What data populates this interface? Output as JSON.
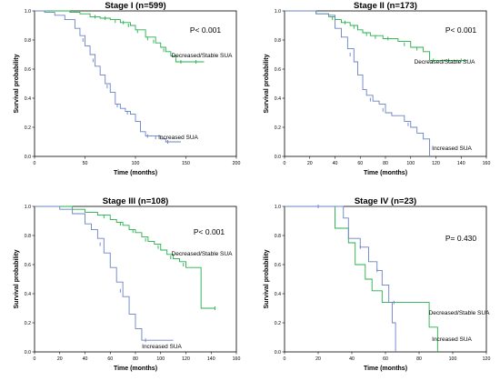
{
  "chart_data": [
    {
      "type": "line",
      "title": "Stage I (n=599)",
      "xlabel": "Time (months)",
      "ylabel": "Survival probability",
      "xlim": [
        0,
        200
      ],
      "ylim": [
        0,
        1.0
      ],
      "xticks": [
        0,
        50,
        100,
        150,
        200
      ],
      "yticks": [
        0.0,
        0.2,
        0.4,
        0.6,
        0.8,
        1.0
      ],
      "pvalue": "P< 0.001",
      "grid": false,
      "series": [
        {
          "name": "Decreased/Stable SUA",
          "color": "#22b04a",
          "points": [
            [
              0,
              1.0
            ],
            [
              20,
              1.0
            ],
            [
              35,
              0.99
            ],
            [
              45,
              0.98
            ],
            [
              55,
              0.96
            ],
            [
              65,
              0.95
            ],
            [
              75,
              0.94
            ],
            [
              85,
              0.92
            ],
            [
              95,
              0.9
            ],
            [
              100,
              0.87
            ],
            [
              110,
              0.82
            ],
            [
              120,
              0.78
            ],
            [
              125,
              0.75
            ],
            [
              130,
              0.72
            ],
            [
              135,
              0.69
            ],
            [
              140,
              0.65
            ],
            [
              155,
              0.65
            ],
            [
              168,
              0.65
            ]
          ],
          "censor": [
            [
              60,
              0.96
            ],
            [
              70,
              0.95
            ],
            [
              80,
              0.93
            ],
            [
              88,
              0.92
            ],
            [
              93,
              0.9
            ],
            [
              102,
              0.86
            ],
            [
              112,
              0.81
            ],
            [
              118,
              0.79
            ],
            [
              128,
              0.73
            ],
            [
              145,
              0.65
            ],
            [
              160,
              0.65
            ]
          ]
        },
        {
          "name": "Increased SUA",
          "color": "#6a80c8",
          "points": [
            [
              0,
              1.0
            ],
            [
              10,
              0.99
            ],
            [
              20,
              0.97
            ],
            [
              30,
              0.94
            ],
            [
              40,
              0.88
            ],
            [
              45,
              0.83
            ],
            [
              50,
              0.76
            ],
            [
              55,
              0.7
            ],
            [
              60,
              0.62
            ],
            [
              65,
              0.56
            ],
            [
              70,
              0.5
            ],
            [
              75,
              0.44
            ],
            [
              80,
              0.36
            ],
            [
              85,
              0.33
            ],
            [
              90,
              0.31
            ],
            [
              95,
              0.29
            ],
            [
              100,
              0.24
            ],
            [
              105,
              0.17
            ],
            [
              110,
              0.14
            ],
            [
              115,
              0.14
            ],
            [
              125,
              0.12
            ],
            [
              130,
              0.1
            ],
            [
              145,
              0.1
            ]
          ],
          "censor": [
            [
              48,
              0.8
            ],
            [
              58,
              0.66
            ],
            [
              72,
              0.48
            ],
            [
              82,
              0.35
            ],
            [
              92,
              0.3
            ],
            [
              112,
              0.14
            ],
            [
              120,
              0.13
            ],
            [
              132,
              0.1
            ]
          ]
        }
      ],
      "series_labels": [
        "Decreased/Stable SUA",
        "Increased SUA"
      ]
    },
    {
      "type": "line",
      "title": "Stage II (n=173)",
      "xlabel": "Time (months)",
      "ylabel": "Survival probability",
      "xlim": [
        0,
        160
      ],
      "ylim": [
        0,
        1.0
      ],
      "xticks": [
        0,
        20,
        40,
        60,
        80,
        100,
        120,
        140,
        160
      ],
      "yticks": [
        0.0,
        0.2,
        0.4,
        0.6,
        0.8,
        1.0
      ],
      "pvalue": "P< 0.001",
      "grid": false,
      "series": [
        {
          "name": "Decreased/Stable SUA",
          "color": "#22b04a",
          "points": [
            [
              0,
              1.0
            ],
            [
              20,
              1.0
            ],
            [
              25,
              0.98
            ],
            [
              35,
              0.96
            ],
            [
              40,
              0.94
            ],
            [
              45,
              0.92
            ],
            [
              52,
              0.9
            ],
            [
              58,
              0.87
            ],
            [
              62,
              0.85
            ],
            [
              68,
              0.83
            ],
            [
              78,
              0.81
            ],
            [
              90,
              0.79
            ],
            [
              100,
              0.75
            ],
            [
              110,
              0.72
            ],
            [
              115,
              0.66
            ],
            [
              125,
              0.66
            ],
            [
              145,
              0.66
            ]
          ],
          "censor": [
            [
              38,
              0.95
            ],
            [
              48,
              0.92
            ],
            [
              55,
              0.89
            ],
            [
              65,
              0.84
            ],
            [
              72,
              0.82
            ],
            [
              82,
              0.81
            ],
            [
              95,
              0.77
            ],
            [
              105,
              0.74
            ],
            [
              118,
              0.66
            ],
            [
              130,
              0.66
            ],
            [
              140,
              0.66
            ]
          ]
        },
        {
          "name": "Increased SUA",
          "color": "#6a80c8",
          "points": [
            [
              0,
              1.0
            ],
            [
              25,
              0.98
            ],
            [
              35,
              0.97
            ],
            [
              40,
              0.88
            ],
            [
              45,
              0.82
            ],
            [
              50,
              0.74
            ],
            [
              55,
              0.65
            ],
            [
              58,
              0.56
            ],
            [
              62,
              0.46
            ],
            [
              65,
              0.42
            ],
            [
              70,
              0.38
            ],
            [
              75,
              0.36
            ],
            [
              80,
              0.3
            ],
            [
              85,
              0.28
            ],
            [
              90,
              0.28
            ],
            [
              95,
              0.24
            ],
            [
              100,
              0.2
            ],
            [
              105,
              0.16
            ],
            [
              110,
              0.12
            ],
            [
              115,
              0.0
            ]
          ],
          "censor": [
            [
              52,
              0.7
            ],
            [
              68,
              0.39
            ],
            [
              78,
              0.32
            ],
            [
              98,
              0.22
            ]
          ]
        }
      ],
      "series_labels": [
        "Decreased/Stable SUA",
        "Increased SUA"
      ]
    },
    {
      "type": "line",
      "title": "Stage III (n=108)",
      "xlabel": "Time (months)",
      "ylabel": "Survival probability",
      "xlim": [
        0,
        160
      ],
      "ylim": [
        0,
        1.0
      ],
      "xticks": [
        0,
        20,
        40,
        60,
        80,
        100,
        120,
        140,
        160
      ],
      "yticks": [
        0.0,
        0.2,
        0.4,
        0.6,
        0.8,
        1.0
      ],
      "pvalue": "P< 0.001",
      "grid": false,
      "series": [
        {
          "name": "Decreased/Stable SUA",
          "color": "#22b04a",
          "points": [
            [
              0,
              1.0
            ],
            [
              20,
              1.0
            ],
            [
              30,
              0.98
            ],
            [
              40,
              0.96
            ],
            [
              50,
              0.94
            ],
            [
              60,
              0.91
            ],
            [
              65,
              0.89
            ],
            [
              70,
              0.87
            ],
            [
              75,
              0.84
            ],
            [
              80,
              0.82
            ],
            [
              85,
              0.79
            ],
            [
              90,
              0.76
            ],
            [
              95,
              0.74
            ],
            [
              100,
              0.7
            ],
            [
              105,
              0.67
            ],
            [
              110,
              0.64
            ],
            [
              115,
              0.62
            ],
            [
              120,
              0.58
            ],
            [
              130,
              0.58
            ],
            [
              132,
              0.3
            ],
            [
              143,
              0.3
            ]
          ],
          "censor": [
            [
              55,
              0.93
            ],
            [
              68,
              0.88
            ],
            [
              78,
              0.83
            ],
            [
              88,
              0.77
            ],
            [
              98,
              0.72
            ],
            [
              108,
              0.65
            ],
            [
              118,
              0.6
            ],
            [
              143,
              0.3
            ]
          ]
        },
        {
          "name": "Increased SUA",
          "color": "#6a80c8",
          "points": [
            [
              0,
              1.0
            ],
            [
              20,
              0.98
            ],
            [
              30,
              0.95
            ],
            [
              40,
              0.88
            ],
            [
              45,
              0.84
            ],
            [
              50,
              0.78
            ],
            [
              55,
              0.68
            ],
            [
              60,
              0.58
            ],
            [
              65,
              0.48
            ],
            [
              70,
              0.38
            ],
            [
              75,
              0.26
            ],
            [
              80,
              0.16
            ],
            [
              85,
              0.08
            ],
            [
              95,
              0.08
            ],
            [
              110,
              0.08
            ]
          ],
          "censor": [
            [
              52,
              0.74
            ],
            [
              68,
              0.42
            ],
            [
              88,
              0.08
            ]
          ]
        }
      ],
      "series_labels": [
        "Decreased/Stable SUA",
        "Increased SUA"
      ]
    },
    {
      "type": "line",
      "title": "Stage IV (n=23)",
      "xlabel": "Time (months)",
      "ylabel": "Survival probability",
      "xlim": [
        0,
        120
      ],
      "ylim": [
        0,
        1.0
      ],
      "xticks": [
        0,
        20,
        40,
        60,
        80,
        100,
        120
      ],
      "yticks": [
        0.0,
        0.2,
        0.4,
        0.6,
        0.8,
        1.0
      ],
      "pvalue": "P= 0.430",
      "grid": false,
      "series": [
        {
          "name": "Decreased/Stable SUA",
          "color": "#22b04a",
          "points": [
            [
              0,
              1.0
            ],
            [
              28,
              1.0
            ],
            [
              30,
              0.85
            ],
            [
              38,
              0.75
            ],
            [
              42,
              0.6
            ],
            [
              48,
              0.5
            ],
            [
              52,
              0.42
            ],
            [
              58,
              0.34
            ],
            [
              64,
              0.34
            ],
            [
              84,
              0.34
            ],
            [
              86,
              0.17
            ],
            [
              90,
              0.17
            ],
            [
              91,
              0.0
            ]
          ],
          "censor": []
        },
        {
          "name": "Increased SUA",
          "color": "#6a80c8",
          "points": [
            [
              0,
              1.0
            ],
            [
              30,
              1.0
            ],
            [
              35,
              0.92
            ],
            [
              38,
              0.78
            ],
            [
              42,
              0.78
            ],
            [
              45,
              0.72
            ],
            [
              50,
              0.62
            ],
            [
              55,
              0.56
            ],
            [
              58,
              0.46
            ],
            [
              62,
              0.34
            ],
            [
              64,
              0.2
            ],
            [
              66,
              0.0
            ]
          ],
          "censor": [
            [
              20,
              1.0
            ],
            [
              45,
              0.72
            ],
            [
              55,
              0.56
            ],
            [
              65,
              0.34
            ]
          ]
        }
      ],
      "series_labels": [
        "Decreased/Stable SUA",
        "Increased SUA"
      ]
    }
  ]
}
